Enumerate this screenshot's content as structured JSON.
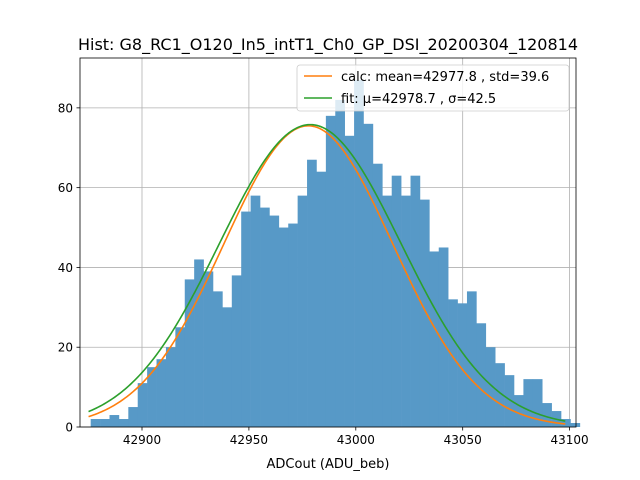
{
  "chart_data": {
    "type": "histogram",
    "title": "Hist: G8_RC1_O120_In5_intT1_Ch0_GP_DSI_20200304_120814",
    "xlabel": "ADCout (ADU_beb)",
    "ylabel": "",
    "xlim": [
      42871,
      43103
    ],
    "ylim": [
      0,
      92.5
    ],
    "xticks": [
      42900,
      42950,
      43000,
      43050,
      43100
    ],
    "yticks": [
      0,
      20,
      40,
      60,
      80
    ],
    "grid": true,
    "legend_position": "top-right",
    "bar_color": "#5799c7",
    "bins": {
      "start": 42876,
      "width": 4.4
    },
    "values": [
      2,
      2,
      3,
      2,
      5,
      11,
      15,
      17,
      20,
      25,
      37,
      42,
      39,
      34,
      30,
      38,
      54,
      58,
      55,
      53,
      50,
      51,
      58,
      67,
      64,
      78,
      82,
      73,
      87,
      76,
      66,
      58,
      63,
      58,
      63,
      57,
      44,
      45,
      32,
      31,
      34,
      26,
      20,
      16,
      13,
      8,
      12,
      12,
      6,
      4,
      2,
      1
    ],
    "series": [
      {
        "name": "calc: mean=42977.8 , std=39.6",
        "type": "gaussian",
        "mu": 42977.8,
        "sigma": 39.6,
        "peak": 75.5,
        "color": "#ff7f0e"
      },
      {
        "name": "fit: μ=42978.7 , σ=42.5",
        "type": "gaussian",
        "mu": 42978.7,
        "sigma": 42.5,
        "peak": 75.8,
        "color": "#2ca02c"
      }
    ],
    "curve_range": [
      42875,
      43098
    ]
  }
}
